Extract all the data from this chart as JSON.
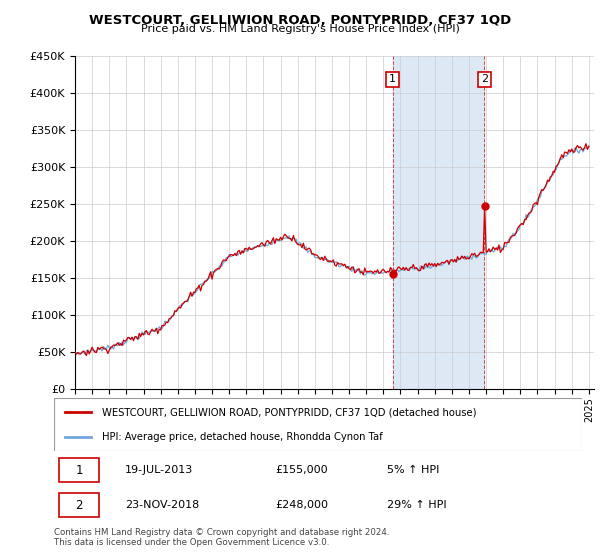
{
  "title": "WESTCOURT, GELLIWION ROAD, PONTYPRIDD, CF37 1QD",
  "subtitle": "Price paid vs. HM Land Registry's House Price Index (HPI)",
  "legend_line1": "WESTCOURT, GELLIWION ROAD, PONTYPRIDD, CF37 1QD (detached house)",
  "legend_line2": "HPI: Average price, detached house, Rhondda Cynon Taf",
  "transaction1_date": "19-JUL-2013",
  "transaction1_price": "£155,000",
  "transaction1_hpi": "5% ↑ HPI",
  "transaction2_date": "23-NOV-2018",
  "transaction2_price": "£248,000",
  "transaction2_hpi": "29% ↑ HPI",
  "footer": "Contains HM Land Registry data © Crown copyright and database right 2024.\nThis data is licensed under the Open Government Licence v3.0.",
  "hpi_color": "#6fa8dc",
  "price_color": "#cc0000",
  "shaded_region_color": "#dce9f5",
  "ylim": [
    0,
    450000
  ],
  "yticks": [
    0,
    50000,
    100000,
    150000,
    200000,
    250000,
    300000,
    350000,
    400000,
    450000
  ],
  "transaction1_year": 2013.55,
  "transaction2_year": 2018.9,
  "xstart": 1995,
  "xend": 2025
}
